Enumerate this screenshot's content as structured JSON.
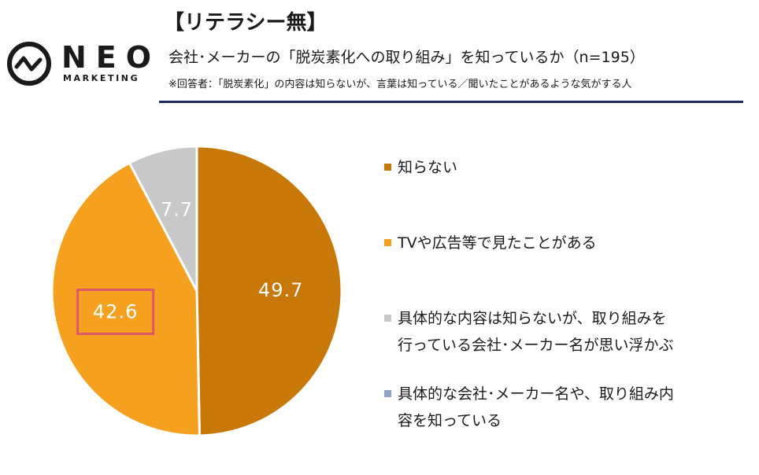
{
  "logo": {
    "word": "NEO",
    "sub": "MARKETING"
  },
  "header": {
    "title": "【リテラシー無】",
    "subtitle": "会社･メーカーの「脱炭素化への取り組み」を知っているか（n=195）",
    "note": "※回答者：「脱炭素化」の内容は知らないが、言葉は知っている／聞いたことがあるような気がする人"
  },
  "colors": {
    "rule": "#1f2a5c",
    "highlight": "#e0566a"
  },
  "chart_data": {
    "type": "pie",
    "unit": "%",
    "slices": [
      {
        "label": "知らない",
        "value": 49.7,
        "display": "49.7",
        "color": "#c87808"
      },
      {
        "label": "TVや広告等で見たことがある",
        "value": 42.6,
        "display": "42.6",
        "color": "#f5a01f",
        "highlighted": true
      },
      {
        "label": "具体的な内容は知らないが、取り組みを\n行っている会社･メーカー名が思い浮かぶ",
        "value": 7.7,
        "display": "7.7",
        "color": "#c8c8c8"
      },
      {
        "label": "具体的な会社･メーカー名や、取り組み内\n容を知っている",
        "value": 0,
        "display": "",
        "color": "#8fa3c4"
      }
    ],
    "legend_position": "right"
  }
}
